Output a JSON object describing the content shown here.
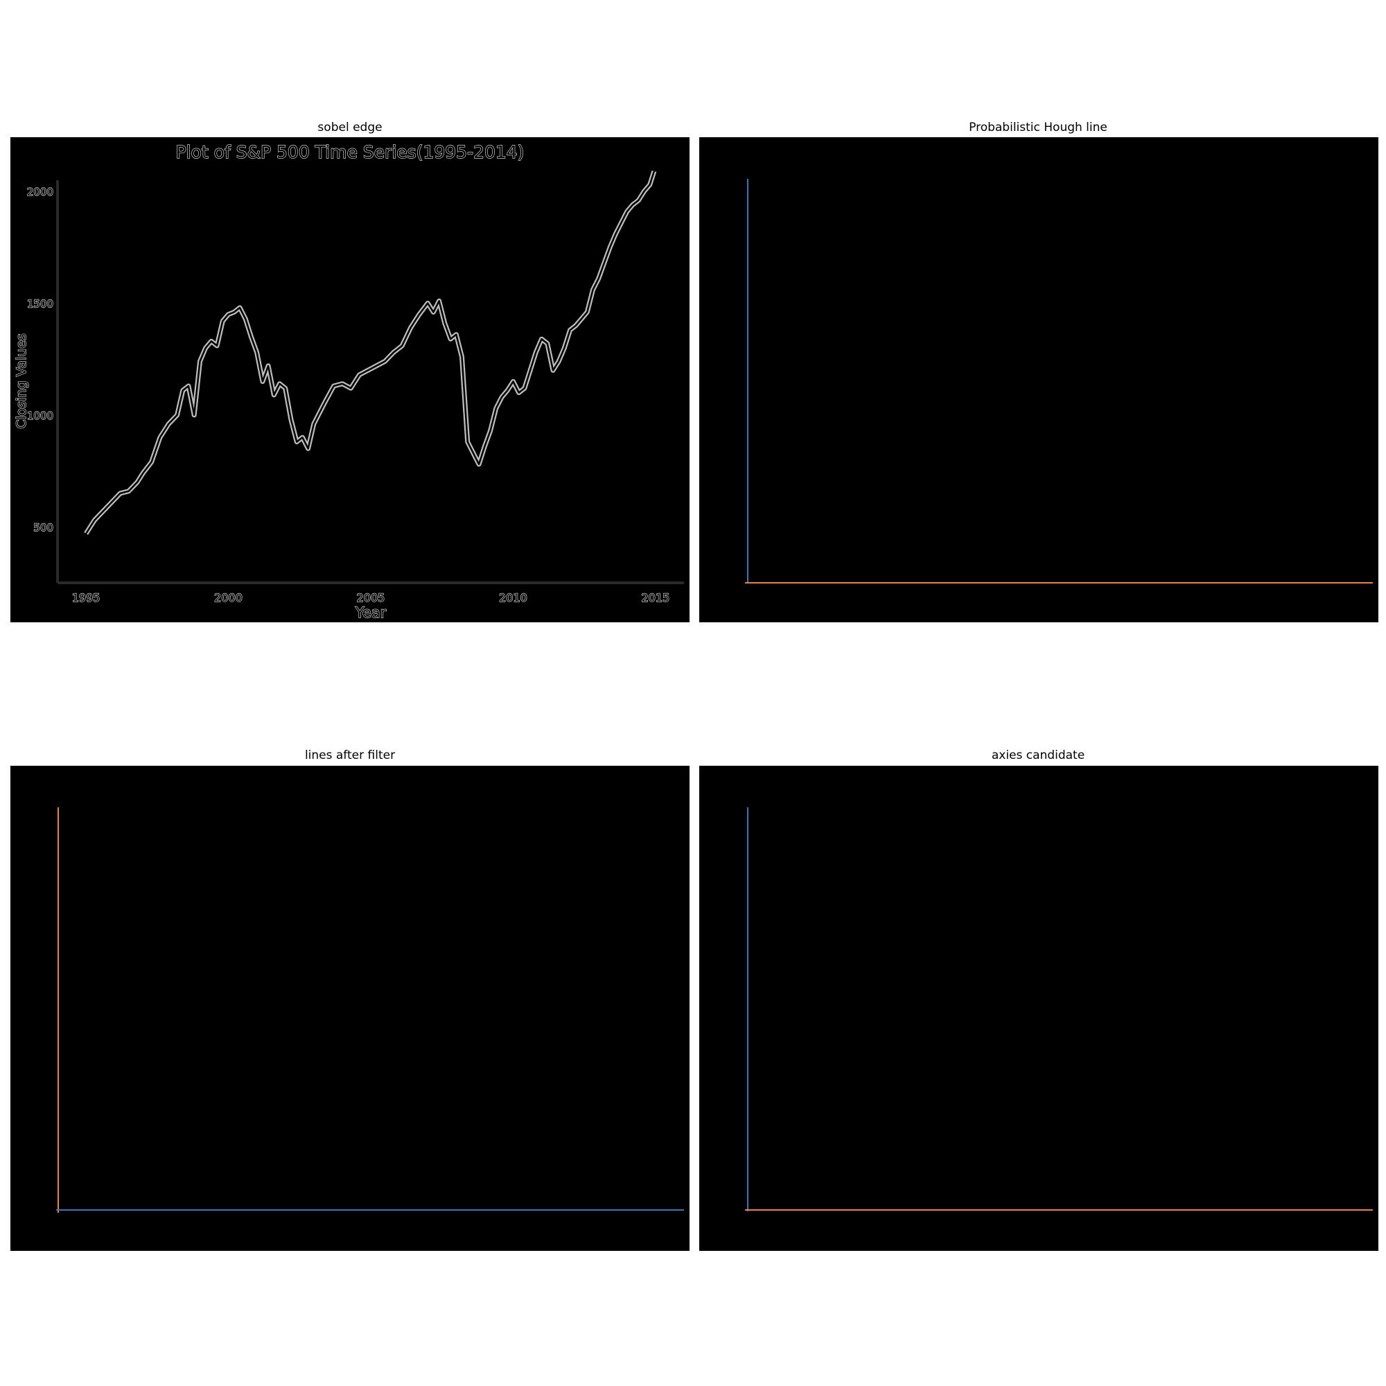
{
  "panels": {
    "sobel": {
      "title": "sobel edge"
    },
    "hough": {
      "title": "Probabilistic Hough line"
    },
    "filtered": {
      "title": "lines after filter"
    },
    "axes": {
      "title": "axies candidate"
    }
  },
  "colors": {
    "blue": "#3b78b8",
    "orange": "#e8834a",
    "edge": "#bdbdbd"
  },
  "chart_data": {
    "type": "line",
    "title": "Plot of S&P 500 Time Series(1995-2014)",
    "xlabel": "Year",
    "ylabel": "Closing Values",
    "xlim": [
      1994,
      2016
    ],
    "ylim": [
      250,
      2050
    ],
    "xticks": [
      "1995",
      "2000",
      "2005",
      "2010",
      "2015"
    ],
    "yticks": [
      "500",
      "1000",
      "1500",
      "2000"
    ],
    "series": [
      {
        "x": [
          1995.0,
          1995.3,
          1995.6,
          1995.9,
          1996.2,
          1996.5,
          1996.8,
          1997.0,
          1997.3,
          1997.6,
          1997.9,
          1998.2,
          1998.4,
          1998.6,
          1998.8,
          1999.0,
          1999.2,
          1999.4,
          1999.6,
          1999.8,
          2000.0,
          2000.2,
          2000.4,
          2000.6,
          2000.8,
          2001.0,
          2001.2,
          2001.4,
          2001.6,
          2001.8,
          2002.0,
          2002.2,
          2002.4,
          2002.6,
          2002.8,
          2003.0,
          2003.2,
          2003.4,
          2003.7,
          2004.0,
          2004.3,
          2004.6,
          2004.9,
          2005.2,
          2005.5,
          2005.8,
          2006.1,
          2006.4,
          2006.7,
          2007.0,
          2007.2,
          2007.4,
          2007.6,
          2007.8,
          2008.0,
          2008.2,
          2008.4,
          2008.6,
          2008.8,
          2009.0,
          2009.2,
          2009.4,
          2009.6,
          2009.8,
          2010.0,
          2010.2,
          2010.4,
          2010.6,
          2010.8,
          2011.0,
          2011.2,
          2011.4,
          2011.6,
          2011.8,
          2012.0,
          2012.2,
          2012.4,
          2012.6,
          2012.8,
          2013.0,
          2013.2,
          2013.4,
          2013.6,
          2013.8,
          2014.0,
          2014.2,
          2014.4,
          2014.6,
          2014.8,
          2014.95
        ],
        "values": [
          470,
          530,
          570,
          610,
          650,
          660,
          700,
          740,
          790,
          900,
          960,
          1000,
          1110,
          1130,
          1000,
          1240,
          1300,
          1330,
          1310,
          1420,
          1450,
          1460,
          1480,
          1430,
          1350,
          1280,
          1150,
          1220,
          1090,
          1140,
          1120,
          980,
          880,
          900,
          850,
          960,
          1010,
          1060,
          1130,
          1140,
          1120,
          1180,
          1200,
          1220,
          1240,
          1280,
          1310,
          1390,
          1450,
          1500,
          1460,
          1510,
          1410,
          1340,
          1360,
          1260,
          880,
          830,
          780,
          860,
          930,
          1030,
          1080,
          1110,
          1150,
          1100,
          1120,
          1200,
          1280,
          1340,
          1320,
          1200,
          1240,
          1300,
          1380,
          1400,
          1430,
          1460,
          1560,
          1610,
          1680,
          1750,
          1810,
          1860,
          1910,
          1940,
          1960,
          2000,
          2030,
          2090
        ]
      }
    ]
  }
}
